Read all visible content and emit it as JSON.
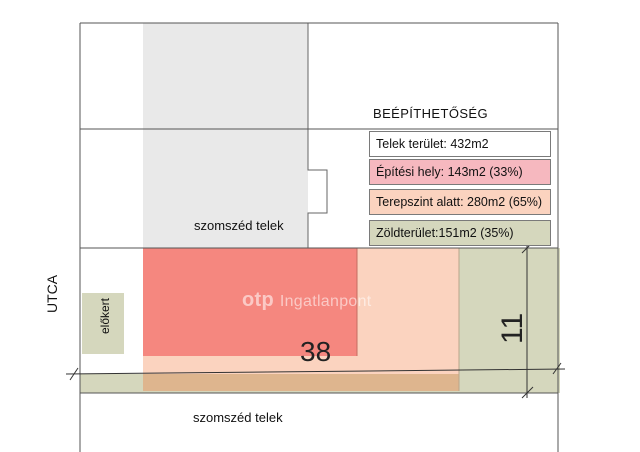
{
  "legend": {
    "title": "BEÉPÍTHETŐSÉG",
    "items": [
      {
        "label": "Telek terület: 432m2",
        "color": "#ffffff"
      },
      {
        "label": "Építési hely: 143m2 (33%)",
        "color": "#f6b8bf"
      },
      {
        "label": "Terepszint alatt: 280m2 (65%)",
        "color": "#fbd3bf"
      },
      {
        "label": "Zöldterület:151m2 (35%)",
        "color": "#d5d7bd"
      }
    ]
  },
  "labels": {
    "neighbor_top": "szomszéd telek",
    "neighbor_bottom": "szomszéd telek",
    "street": "UTCA",
    "front_garden": "előkert"
  },
  "dimensions": {
    "length": "38",
    "width": "11"
  },
  "watermark": {
    "brand": "otp",
    "rest": "Ingatlanpont"
  },
  "colors": {
    "green_area": "#d5d7bd",
    "underground": "#fbd3bf",
    "building_area": "#f5877f",
    "neighbor_building": "#e8e8e8",
    "strip_band": "#deb58e",
    "lines": "#555555"
  }
}
